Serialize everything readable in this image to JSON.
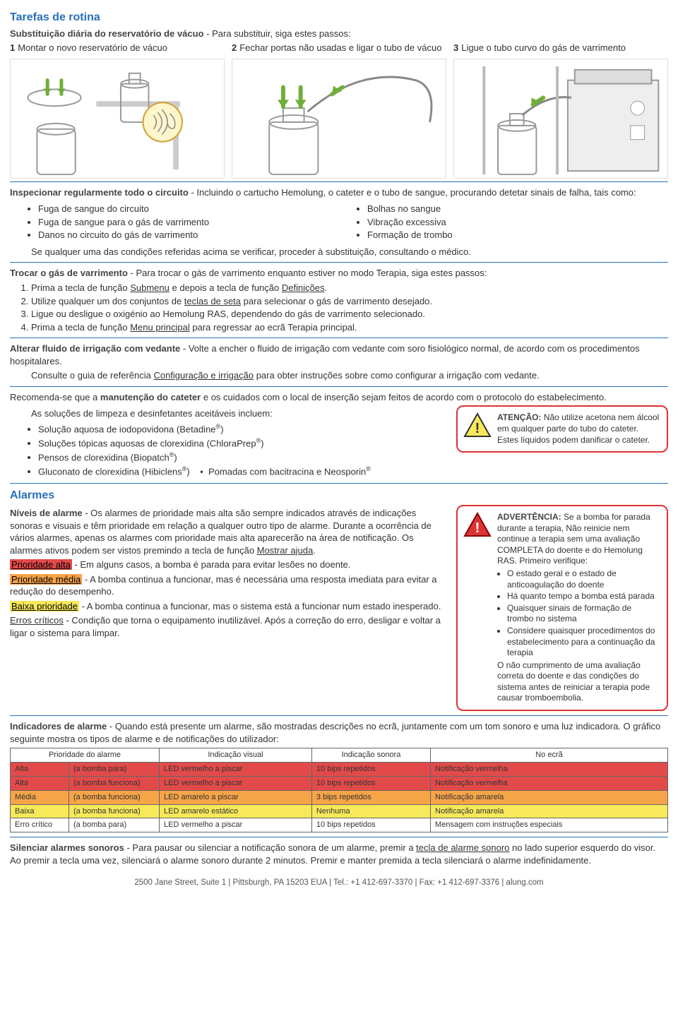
{
  "header": {
    "title": "Tarefas de rotina",
    "subtitle_bold": "Substituição diária do reservatório de vácuo",
    "subtitle_rest": " - Para substituir, siga estes passos:",
    "steps": [
      {
        "n": "1",
        "txt": "Montar o novo reservatório de vácuo"
      },
      {
        "n": "2",
        "txt": "Fechar portas não usadas e ligar o tubo de vácuo"
      },
      {
        "n": "3",
        "txt": "Ligue o tubo curvo do gás de varrimento"
      }
    ]
  },
  "inspect": {
    "lead_bold": "Inspecionar regularmente todo o circuito",
    "lead_rest": " - Incluindo o cartucho Hemolung, o cateter e o tubo de sangue, procurando detetar sinais de falha, tais como:",
    "left": [
      "Fuga de sangue do circuito",
      "Fuga de sangue para o gás de varrimento",
      "Danos no circuito do gás de varrimento"
    ],
    "right": [
      "Bolhas no sangue",
      "Vibração excessiva",
      "Formação de trombo"
    ],
    "tail": "Se qualquer uma das condições referidas acima se verificar, proceder à substituição, consultando o médico."
  },
  "sweep": {
    "lead_bold": "Trocar o gás de varrimento",
    "lead_rest": " - Para trocar o gás de varrimento enquanto estiver no modo Terapia, siga estes passos:",
    "s1a": "Prima a tecla de função ",
    "s1u1": "Submenu",
    "s1b": " e depois a tecla de função ",
    "s1u2": "Definições",
    "s1c": ".",
    "s2a": "Utilize qualquer um dos conjuntos de ",
    "s2u": "teclas de seta",
    "s2b": " para selecionar o gás de varrimento desejado.",
    "s3": "Ligue ou desligue o oxigénio ao Hemolung RAS, dependendo do gás de varrimento selecionado.",
    "s4a": "Prima a tecla de função ",
    "s4u": "Menu principal",
    "s4b": " para regressar ao ecrã Terapia principal."
  },
  "seal": {
    "lead_bold": "Alterar fluido de irrigação com vedante",
    "lead_rest": " - Volte a encher o fluido de irrigação com vedante com soro fisiológico normal, de acordo com os procedimentos hospitalares.",
    "ref_a": "Consulte o guia de referência ",
    "ref_u": "Configuração e irrigação",
    "ref_b": " para obter instruções sobre como configurar a irrigação com vedante."
  },
  "cath": {
    "p1a": "Recomenda-se que a ",
    "p1b": "manutenção do cateter",
    "p1c": " e os cuidados com o local de inserção sejam feitos de acordo com o protocolo do estabelecimento.",
    "p2": "As soluções de limpeza e desinfetantes aceitáveis incluem:",
    "items": [
      "Solução aquosa de iodopovidona (Betadine",
      "Soluções tópicas aquosas de clorexidina (ChloraPrep",
      "Pensos de clorexidina (Biopatch",
      "Gluconato de clorexidina (Hibiclens"
    ],
    "extra": "Pomadas com bacitracina e Neosporin",
    "warn_bold": "ATENÇÃO:",
    "warn_txt": " Não utilize acetona nem álcool em qualquer parte do tubo do cateter. Estes líquidos podem danificar o cateter."
  },
  "alarms": {
    "title": "Alarmes",
    "levels_bold": "Níveis de alarme",
    "levels_txt": " - Os alarmes de prioridade mais alta são sempre indicados através de indicações sonoras e visuais e têm prioridade em relação a qualquer outro tipo de alarme. Durante a ocorrência de vários alarmes, apenas os alarmes com prioridade mais alta aparecerão na área de notificação. Os alarmes ativos podem ser vistos premindo a tecla de função ",
    "levels_u": "Mostrar ajuda",
    "levels_dot": ".",
    "hi": "Prioridade alta",
    "hi_txt": " - Em alguns casos, a bomba é parada para evitar lesões no doente.",
    "med": "Prioridade média",
    "med_txt": " - A bomba continua a funcionar, mas é necessária uma resposta imediata para evitar a redução do desempenho.",
    "low": "Baixa prioridade",
    "low_txt": " - A bomba continua a funcionar, mas o sistema está a funcionar num estado inesperado.",
    "crit_u": "Erros críticos",
    "crit_txt": " - Condição que torna o equipamento inutilizável. Após a correção do erro, desligar e voltar a ligar o sistema para limpar.",
    "warn_bold": "ADVERTÊNCIA:",
    "warn_txt1": " Se a bomba for parada durante a terapia, Não reinicie nem continue a terapia sem uma avaliação COMPLETA do doente e do Hemolung RAS. Primeiro verifique:",
    "warn_list": [
      "O estado geral e o estado de anticoagulação do doente",
      "Há quanto tempo a bomba está parada",
      "Quaisquer sinais de formação de trombo no sistema",
      "Considere quaisquer procedimentos do estabelecimento para a continuação da terapia"
    ],
    "warn_tail": "O não cumprimento de uma avaliação correta do doente e das condições do sistema antes de reiniciar a terapia pode causar tromboembolia."
  },
  "indic": {
    "lead_bold": "Indicadores de alarme",
    "lead_rest": " - Quando está presente um alarme, são mostradas descrições no ecrã, juntamente com um tom sonoro e uma luz indicadora. O gráfico seguinte mostra os tipos de alarme e de notificações do utilizador:",
    "headers": [
      "Prioridade do alarme",
      "Indicação visual",
      "Indicação sonora",
      "No ecrã"
    ],
    "rows": [
      {
        "bg": "#e24a4a",
        "c": [
          "Alta",
          "(a bomba para)",
          "LED vermelho a piscar",
          "10 bips repetidos",
          "Notificação vermelha"
        ]
      },
      {
        "bg": "#e24a4a",
        "c": [
          "Alta",
          "(a bomba funciona)",
          "LED vermelho a piscar",
          "10 bips repetidos",
          "Notificação vermelha"
        ]
      },
      {
        "bg": "#f6a448",
        "c": [
          "Média",
          "(a bomba funciona)",
          "LED amarelo a piscar",
          "3 bips repetidos",
          "Notificação amarela"
        ]
      },
      {
        "bg": "#f8e95a",
        "c": [
          "Baixa",
          "(a bomba funciona)",
          "LED amarelo estático",
          "Nenhuma",
          "Notificação amarela"
        ]
      },
      {
        "bg": "#ffffff",
        "c": [
          "Erro crítico",
          "(a bomba para)",
          "LED vermelho a piscar",
          "10 bips repetidos",
          "Mensagem com instruções especiais"
        ]
      }
    ]
  },
  "silence": {
    "lead_bold": "Silenciar alarmes sonoros",
    "txt1": " - Para pausar ou silenciar a notificação sonora de um alarme, premir a ",
    "u": "tecla de alarme sonoro",
    "txt2": " no lado superior esquerdo do visor. Ao premir a tecla uma vez, silenciará o alarme sonoro durante 2 minutos. Premir e manter premida a tecla silenciará o alarme indefinidamente."
  },
  "footer": "2500 Jane Street, Suite 1 | Pittsburgh, PA 15203 EUA | Tel.: +1 412-697-3370 | Fax: +1 412-697-3376 | alung.com",
  "colors": {
    "blue": "#2871b8",
    "red": "#e24a4a",
    "orange": "#f6a448",
    "yellow": "#f8e95a",
    "green": "#6fae3a"
  }
}
